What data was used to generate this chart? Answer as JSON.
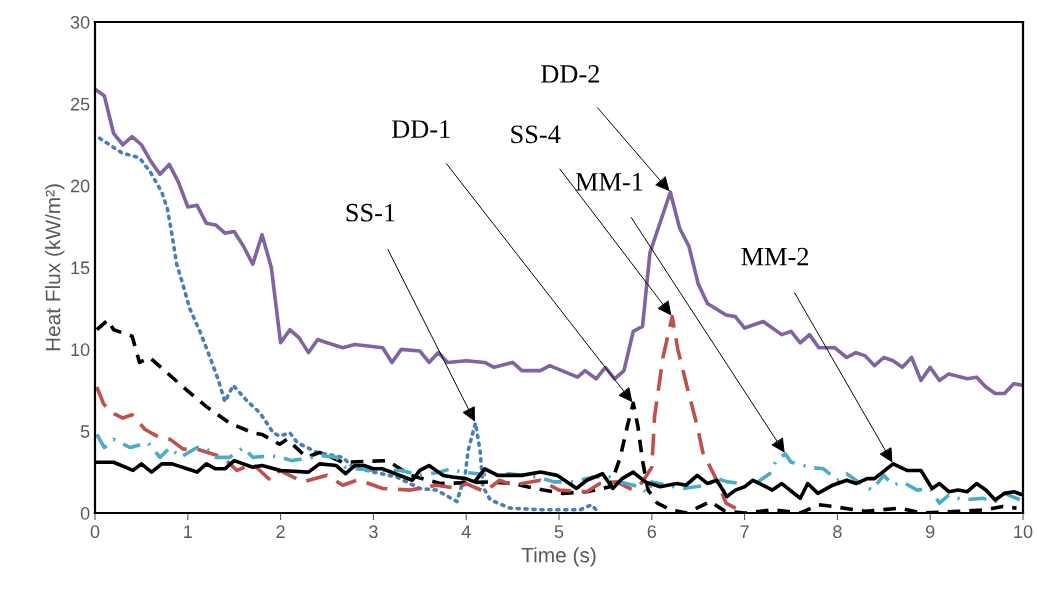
{
  "chart_data": {
    "type": "line",
    "xlabel": "Time (s)",
    "ylabel": "Heat Flux (kW/m²)",
    "xlim": [
      0,
      10
    ],
    "ylim": [
      0,
      30
    ],
    "xticks": [
      0,
      1,
      2,
      3,
      4,
      5,
      6,
      7,
      8,
      9,
      10
    ],
    "yticks": [
      0,
      5,
      10,
      15,
      20,
      25,
      30
    ],
    "grid": false,
    "legend": false,
    "marker": "none",
    "series": [
      {
        "color": "#8064a2",
        "line_style": "solid",
        "x": [
          0,
          0.1,
          0.2,
          0.3,
          0.4,
          0.5,
          0.6,
          0.7,
          0.8,
          0.9,
          1.0,
          1.1,
          1.2,
          1.3,
          1.4,
          1.5,
          1.6,
          1.7,
          1.8,
          1.9,
          2.0,
          2.1,
          2.2,
          2.3,
          2.4,
          2.5,
          2.67,
          2.8,
          3.1,
          3.2,
          3.3,
          3.5,
          3.6,
          3.7,
          3.8,
          4.0,
          4.2,
          4.3,
          4.5,
          4.6,
          4.8,
          4.9,
          5.2,
          5.28,
          5.4,
          5.5,
          5.6,
          5.7,
          5.8,
          5.9,
          5.98,
          6.2,
          6.3,
          6.4,
          6.5,
          6.6,
          6.8,
          6.9,
          7.0,
          7.2,
          7.4,
          7.5,
          7.6,
          7.7,
          7.8,
          7.97,
          8.1,
          8.2,
          8.3,
          8.4,
          8.5,
          8.6,
          8.7,
          8.8,
          8.9,
          9.0,
          9.1,
          9.2,
          9.4,
          9.5,
          9.6,
          9.7,
          9.8,
          9.9,
          10
        ],
        "values": [
          25.9,
          25.5,
          23.2,
          22.5,
          23,
          22.5,
          21.5,
          20.7,
          21.3,
          20.2,
          18.7,
          18.8,
          17.7,
          17.6,
          17.1,
          17.2,
          16.3,
          15.2,
          17.0,
          15.0,
          10.4,
          11.2,
          10.7,
          9.8,
          10.6,
          10.4,
          10.1,
          10.3,
          10.1,
          9.2,
          10.0,
          9.9,
          9.2,
          9.8,
          9.2,
          9.3,
          9.2,
          8.9,
          9.2,
          8.7,
          8.7,
          9.0,
          8.3,
          8.7,
          8.2,
          8.9,
          8.2,
          8.7,
          11.1,
          11.4,
          15.9,
          19.6,
          17.4,
          16.3,
          14.0,
          12.8,
          12.1,
          12.0,
          11.3,
          11.7,
          10.9,
          11.1,
          10.4,
          10.9,
          10.1,
          10.1,
          9.5,
          9.8,
          9.6,
          9.0,
          9.5,
          9.3,
          8.9,
          9.5,
          8.1,
          8.9,
          8.1,
          8.5,
          8.2,
          8.3,
          7.7,
          7.3,
          7.3,
          7.9,
          7.8
        ]
      },
      {
        "color": "#4a7ebb",
        "line_style": "dotted",
        "x": [
          0.05,
          0.29,
          0.48,
          0.6,
          0.72,
          0.78,
          0.83,
          0.88,
          0.94,
          1.02,
          1.13,
          1.24,
          1.33,
          1.4,
          1.49,
          1.63,
          1.78,
          1.92,
          1.99,
          2.1,
          2.18,
          2.39,
          2.67,
          2.78,
          3.0,
          3.25,
          3.5,
          3.68,
          3.9,
          3.99,
          4.02,
          4.1,
          4.15,
          4.18,
          4.26,
          4.47,
          4.8,
          5.23,
          5.35,
          5.43
        ],
        "values": [
          22.9,
          22.0,
          21.7,
          20.8,
          19.6,
          18.6,
          17.0,
          15.2,
          14.1,
          12.5,
          11.1,
          9.5,
          8.1,
          6.8,
          7.8,
          6.9,
          6.1,
          4.9,
          4.7,
          4.9,
          4.3,
          3.7,
          3.4,
          2.8,
          2.5,
          2.2,
          1.5,
          1.4,
          0.7,
          2.4,
          3.8,
          5.5,
          3.8,
          1.6,
          0.8,
          0.3,
          0.2,
          0.2,
          0.5,
          0
        ]
      },
      {
        "color": "#000000",
        "line_style": "dashed",
        "x": [
          0.02,
          0.14,
          0.2,
          0.4,
          0.48,
          0.59,
          0.81,
          0.99,
          1.2,
          1.45,
          1.7,
          1.8,
          1.99,
          2.07,
          2.28,
          2.42,
          2.67,
          3.15,
          3.4,
          3.72,
          4.26,
          4.5,
          4.83,
          5.04,
          5.3,
          5.55,
          5.66,
          5.74,
          5.8,
          5.85,
          5.9,
          5.96,
          6.06,
          6.2,
          6.38,
          6.63,
          6.79,
          7.0,
          7.3,
          7.6,
          7.8,
          7.95,
          8.3,
          8.67,
          8.9,
          9.3,
          9.6,
          9.78,
          9.93
        ],
        "values": [
          11.2,
          11.8,
          11.2,
          10.8,
          9.2,
          9.5,
          8.4,
          7.5,
          6.5,
          5.5,
          4.9,
          4.8,
          4.2,
          4.5,
          3.4,
          3.7,
          3.1,
          3.2,
          2.3,
          1.8,
          1.9,
          1.8,
          1.4,
          1.2,
          1.3,
          1.6,
          3.4,
          5.4,
          6.7,
          5.3,
          3.2,
          1.4,
          0.6,
          0.2,
          0,
          0.7,
          0.1,
          0,
          0.2,
          0,
          0.5,
          0.4,
          0.1,
          0.3,
          0,
          0.1,
          0.2,
          0.4,
          0.3
        ]
      },
      {
        "color": "#c0504d",
        "line_style": "longdash",
        "x": [
          0.02,
          0.09,
          0.16,
          0.3,
          0.4,
          0.54,
          0.7,
          0.81,
          0.95,
          1.1,
          1.38,
          1.53,
          1.7,
          1.89,
          1.99,
          2.24,
          2.5,
          2.67,
          2.82,
          2.9,
          3.1,
          3.4,
          3.68,
          3.9,
          4.0,
          4.2,
          4.36,
          4.5,
          4.8,
          5.0,
          5.3,
          5.44,
          5.62,
          5.8,
          5.9,
          6.0,
          6.03,
          6.12,
          6.22,
          6.28,
          6.38,
          6.49,
          6.55,
          6.7,
          6.8,
          7.0
        ],
        "values": [
          7.7,
          6.7,
          6.2,
          5.8,
          6.0,
          5.1,
          4.6,
          4.5,
          3.9,
          3.9,
          3.4,
          2.6,
          3.0,
          2.0,
          2.6,
          1.9,
          2.3,
          1.7,
          2.0,
          1.9,
          1.5,
          1.4,
          1.7,
          1.5,
          1.8,
          1.3,
          2.0,
          1.7,
          2.0,
          1.4,
          1.3,
          1.8,
          1.9,
          1.4,
          1.9,
          2.8,
          5.9,
          9.5,
          12.0,
          10.0,
          7.7,
          5.3,
          3.7,
          2.0,
          0.6,
          0
        ]
      },
      {
        "color": "#4bacc6",
        "line_style": "dashdot",
        "x": [
          0.02,
          0.1,
          0.2,
          0.38,
          0.57,
          0.7,
          0.81,
          0.92,
          1.1,
          1.19,
          1.3,
          1.45,
          1.6,
          1.7,
          1.9,
          2.0,
          2.12,
          2.46,
          2.6,
          2.7,
          3.0,
          3.3,
          3.5,
          3.72,
          3.83,
          3.95,
          4.29,
          4.46,
          4.76,
          4.95,
          5.15,
          5.37,
          5.55,
          5.66,
          5.87,
          5.96,
          6.0,
          6.15,
          6.34,
          6.6,
          6.7,
          6.82,
          7.09,
          7.27,
          7.35,
          7.44,
          7.5,
          7.6,
          7.68,
          7.85,
          8.0,
          8.1,
          8.2,
          8.37,
          8.5,
          8.6,
          8.7,
          8.86,
          9.0,
          9.1,
          9.2,
          9.35,
          9.57,
          9.7,
          9.8,
          9.97
        ],
        "values": [
          4.8,
          4.0,
          4.5,
          4.0,
          4.3,
          3.4,
          4.0,
          3.4,
          4.0,
          4.0,
          3.4,
          3.4,
          4.0,
          3.4,
          3.5,
          3.4,
          3.2,
          3.5,
          3.4,
          2.8,
          2.6,
          2.6,
          2.3,
          2.5,
          2.7,
          2.5,
          2.3,
          2.4,
          2.2,
          1.9,
          1.9,
          2.2,
          2.2,
          1.9,
          1.6,
          1.2,
          1.9,
          1.7,
          1.5,
          1.7,
          2.1,
          1.9,
          1.7,
          2.4,
          3.3,
          3.6,
          3.1,
          3.0,
          2.8,
          2.7,
          2.0,
          2.4,
          2.0,
          1.4,
          2.3,
          1.7,
          1.9,
          1.4,
          1.5,
          0.6,
          1.1,
          0.8,
          0.9,
          0.7,
          1.2,
          0.8
        ]
      },
      {
        "color": "#000000",
        "line_style": "solid",
        "x": [
          0.02,
          0.2,
          0.41,
          0.5,
          0.61,
          0.72,
          0.83,
          1.1,
          1.2,
          1.3,
          1.4,
          1.5,
          1.7,
          1.8,
          2.0,
          2.3,
          2.42,
          2.6,
          2.7,
          2.8,
          2.9,
          3.0,
          3.1,
          3.42,
          3.5,
          3.6,
          3.75,
          3.85,
          4.0,
          4.09,
          4.2,
          4.34,
          4.6,
          4.8,
          4.98,
          5.19,
          5.3,
          5.47,
          5.58,
          5.68,
          5.8,
          5.93,
          6.09,
          6.27,
          6.37,
          6.49,
          6.6,
          6.7,
          6.81,
          6.9,
          7.0,
          7.09,
          7.3,
          7.4,
          7.6,
          7.68,
          7.79,
          7.95,
          8.1,
          8.2,
          8.32,
          8.4,
          8.6,
          8.75,
          8.9,
          9.02,
          9.1,
          9.2,
          9.3,
          9.4,
          9.5,
          9.6,
          9.7,
          9.8,
          9.9,
          10
        ],
        "values": [
          3.1,
          3.1,
          2.6,
          3.0,
          2.5,
          3.0,
          3.0,
          2.5,
          3.0,
          2.7,
          2.7,
          3.2,
          2.8,
          2.9,
          2.6,
          2.5,
          3.0,
          2.9,
          2.4,
          2.9,
          2.9,
          2.7,
          2.7,
          2.0,
          2.6,
          2.9,
          2.3,
          2.2,
          2.1,
          1.9,
          2.7,
          2.3,
          2.3,
          2.5,
          2.3,
          1.5,
          2.0,
          2.4,
          1.5,
          2.1,
          2.5,
          1.9,
          1.6,
          1.8,
          1.7,
          2.3,
          1.8,
          2.0,
          1.0,
          1.4,
          1.6,
          2.0,
          1.4,
          1.8,
          0.9,
          1.8,
          1.2,
          1.7,
          2.0,
          1.8,
          2.1,
          2.1,
          3.0,
          2.6,
          2.6,
          1.5,
          1.8,
          1.3,
          1.4,
          1.3,
          1.8,
          1.4,
          0.8,
          1.2,
          1.3,
          1.1
        ]
      }
    ],
    "annotations": [
      {
        "text": "SS-1",
        "x": 4.1,
        "y": 5.5
      },
      {
        "text": "DD-1",
        "x": 5.8,
        "y": 6.7
      },
      {
        "text": "SS-4",
        "x": 6.22,
        "y": 12.0
      },
      {
        "text": "DD-2",
        "x": 6.2,
        "y": 19.6
      },
      {
        "text": "MM-1",
        "x": 7.44,
        "y": 3.6
      },
      {
        "text": "MM-2",
        "x": 8.6,
        "y": 3.0
      }
    ]
  }
}
